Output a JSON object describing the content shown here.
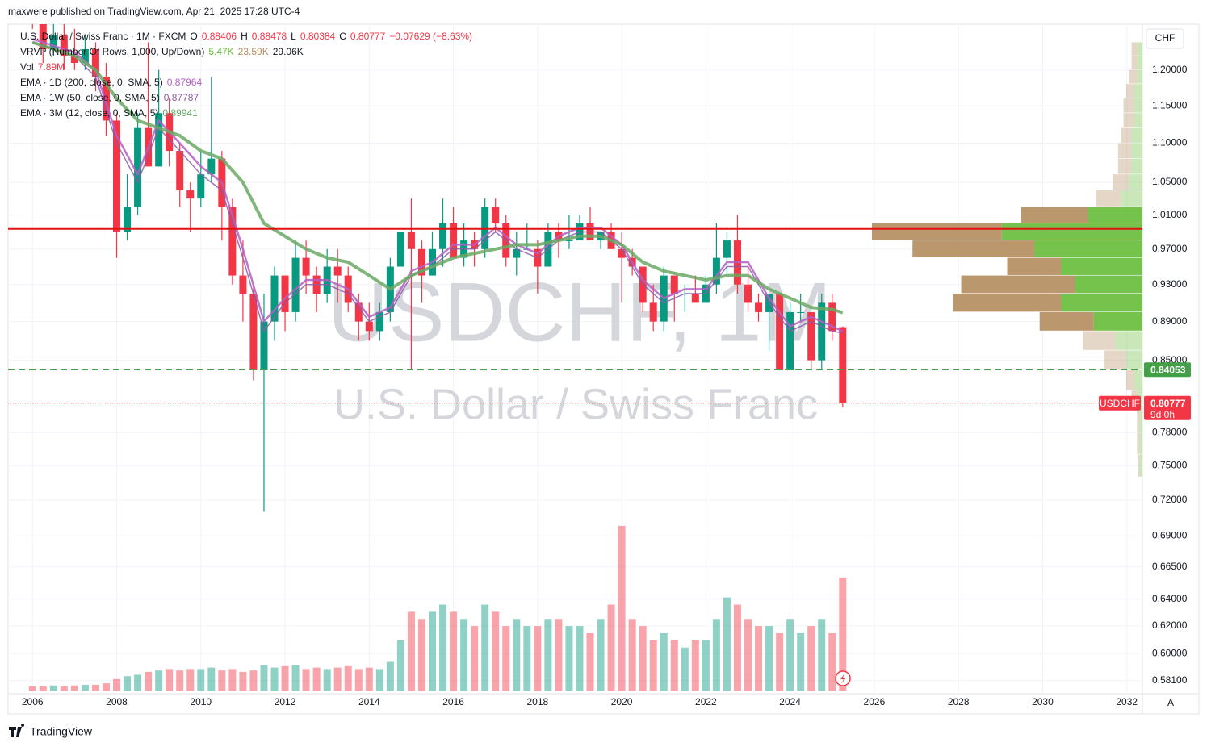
{
  "header": "maxwere published on TradingView.com, Apr 21, 2025 17:28 UTC-4",
  "footer": "TradingView",
  "chart_data": {
    "type": "candlestick",
    "title": "U.S. Dollar / Swiss Franc · 1M · FXCM",
    "watermark_symbol": "USDCHF, 1M",
    "watermark_name": "U.S. Dollar / Swiss Franc",
    "currency": "CHF",
    "auto_button": "A",
    "ohlc_labels": [
      "O",
      "H",
      "L",
      "C"
    ],
    "change": "−0.07629 (−8.63%)",
    "up_color": "#089981",
    "down_color": "#f23645",
    "x": [
      2006,
      2006.25,
      2006.5,
      2006.75,
      2007,
      2007.25,
      2007.5,
      2007.75,
      2008,
      2008.25,
      2008.5,
      2008.75,
      2009,
      2009.25,
      2009.5,
      2009.75,
      2010,
      2010.25,
      2010.5,
      2010.75,
      2011,
      2011.25,
      2011.5,
      2011.75,
      2012,
      2012.25,
      2012.5,
      2012.75,
      2013,
      2013.25,
      2013.5,
      2013.75,
      2014,
      2014.25,
      2014.5,
      2014.75,
      2015,
      2015.25,
      2015.5,
      2015.75,
      2016,
      2016.25,
      2016.5,
      2016.75,
      2017,
      2017.25,
      2017.5,
      2017.75,
      2018,
      2018.25,
      2018.5,
      2018.75,
      2019,
      2019.25,
      2019.5,
      2019.75,
      2020,
      2020.25,
      2020.5,
      2020.75,
      2021,
      2021.25,
      2021.5,
      2021.75,
      2022,
      2022.25,
      2022.5,
      2022.75,
      2023,
      2023.25,
      2023.5,
      2023.75,
      2024,
      2024.25,
      2024.5,
      2024.75,
      2025,
      2025.25
    ],
    "open": [
      1.31,
      1.27,
      1.23,
      1.25,
      1.22,
      1.21,
      1.23,
      1.19,
      1.13,
      0.99,
      1.02,
      1.12,
      1.07,
      1.14,
      1.09,
      1.04,
      1.03,
      1.06,
      1.08,
      1.02,
      0.94,
      0.92,
      0.84,
      0.89,
      0.94,
      0.9,
      0.96,
      0.94,
      0.92,
      0.95,
      0.94,
      0.91,
      0.89,
      0.88,
      0.9,
      0.95,
      0.99,
      0.97,
      0.94,
      0.97,
      1.0,
      0.96,
      0.98,
      0.97,
      1.02,
      1.0,
      0.96,
      0.97,
      0.97,
      0.95,
      0.99,
      0.98,
      0.98,
      1.0,
      0.98,
      0.99,
      0.97,
      0.96,
      0.95,
      0.91,
      0.89,
      0.94,
      0.92,
      0.92,
      0.91,
      0.93,
      0.96,
      0.98,
      0.93,
      0.91,
      0.9,
      0.92,
      0.84,
      0.9,
      0.9,
      0.85,
      0.91,
      0.88406
    ],
    "high": [
      1.32,
      1.29,
      1.27,
      1.28,
      1.26,
      1.25,
      1.24,
      1.21,
      1.14,
      1.06,
      1.14,
      1.24,
      1.2,
      1.16,
      1.1,
      1.05,
      1.09,
      1.19,
      1.09,
      1.03,
      0.98,
      0.93,
      0.92,
      0.95,
      0.94,
      0.98,
      0.98,
      0.95,
      0.97,
      0.97,
      0.95,
      0.92,
      0.91,
      0.91,
      0.96,
      0.99,
      1.03,
      0.98,
      0.99,
      1.03,
      1.02,
      1.0,
      0.99,
      1.03,
      1.03,
      1.01,
      0.99,
      1.0,
      0.98,
      1.0,
      1.0,
      1.01,
      1.01,
      1.02,
      0.99,
      1.0,
      0.99,
      0.97,
      0.95,
      0.93,
      0.95,
      0.94,
      0.93,
      0.94,
      0.94,
      1.0,
      0.99,
      1.01,
      0.95,
      0.92,
      0.92,
      0.92,
      0.91,
      0.92,
      0.9,
      0.92,
      0.92,
      0.88478
    ],
    "low": [
      1.26,
      1.21,
      1.22,
      1.2,
      1.2,
      1.2,
      1.17,
      1.11,
      0.96,
      0.98,
      1.01,
      1.07,
      1.07,
      1.07,
      1.02,
      0.99,
      1.02,
      1.05,
      0.98,
      0.93,
      0.89,
      0.83,
      0.71,
      0.87,
      0.88,
      0.89,
      0.92,
      0.9,
      0.91,
      0.91,
      0.9,
      0.87,
      0.87,
      0.87,
      0.89,
      0.95,
      0.84,
      0.91,
      0.94,
      0.95,
      0.96,
      0.95,
      0.95,
      0.96,
      0.99,
      0.95,
      0.94,
      0.97,
      0.92,
      0.95,
      0.96,
      0.97,
      0.98,
      0.98,
      0.97,
      0.97,
      0.91,
      0.94,
      0.9,
      0.88,
      0.88,
      0.89,
      0.9,
      0.91,
      0.91,
      0.92,
      0.94,
      0.92,
      0.9,
      0.89,
      0.86,
      0.84,
      0.84,
      0.89,
      0.84,
      0.84,
      0.87,
      0.80384
    ],
    "close": [
      1.27,
      1.23,
      1.25,
      1.22,
      1.21,
      1.23,
      1.19,
      1.13,
      0.99,
      1.02,
      1.12,
      1.07,
      1.14,
      1.09,
      1.04,
      1.03,
      1.06,
      1.08,
      1.02,
      0.94,
      0.92,
      0.84,
      0.89,
      0.94,
      0.9,
      0.96,
      0.94,
      0.92,
      0.95,
      0.94,
      0.91,
      0.89,
      0.88,
      0.9,
      0.95,
      0.99,
      0.97,
      0.94,
      0.97,
      1.0,
      0.96,
      0.98,
      0.97,
      1.02,
      1.0,
      0.96,
      0.97,
      0.97,
      0.95,
      0.99,
      0.98,
      0.98,
      1.0,
      0.98,
      0.99,
      0.97,
      0.96,
      0.95,
      0.91,
      0.89,
      0.94,
      0.92,
      0.92,
      0.91,
      0.93,
      0.96,
      0.98,
      0.93,
      0.91,
      0.9,
      0.92,
      0.84,
      0.9,
      0.9,
      0.85,
      0.91,
      0.88,
      0.80777
    ],
    "xlim": [
      2005.42,
      2032.37
    ],
    "xticks": [
      2006,
      2008,
      2010,
      2012,
      2014,
      2016,
      2018,
      2020,
      2022,
      2024,
      2026,
      2028,
      2030,
      2032
    ],
    "ylim": [
      0.572,
      1.267
    ],
    "log_scale": true,
    "grid": true,
    "yticks": [
      {
        "value": 1.2,
        "label": "1.20000"
      },
      {
        "value": 1.15,
        "label": "1.15000"
      },
      {
        "value": 1.1,
        "label": "1.10000"
      },
      {
        "value": 1.05,
        "label": "1.05000"
      },
      {
        "value": 1.01,
        "label": "1.01000"
      },
      {
        "value": 0.97,
        "label": "0.97000"
      },
      {
        "value": 0.93,
        "label": "0.93000"
      },
      {
        "value": 0.89,
        "label": "0.89000"
      },
      {
        "value": 0.85,
        "label": "0.85000"
      },
      {
        "value": 0.78,
        "label": "0.78000"
      },
      {
        "value": 0.75,
        "label": "0.75000"
      },
      {
        "value": 0.72,
        "label": "0.72000"
      },
      {
        "value": 0.69,
        "label": "0.69000"
      },
      {
        "value": 0.665,
        "label": "0.66500"
      },
      {
        "value": 0.64,
        "label": "0.64000"
      },
      {
        "value": 0.62,
        "label": "0.62000"
      },
      {
        "value": 0.6,
        "label": "0.60000"
      },
      {
        "value": 0.581,
        "label": "0.58100"
      }
    ],
    "volume": {
      "name": "Vol",
      "value_label": "7.89M",
      "values": [
        0.3,
        0.3,
        0.35,
        0.3,
        0.35,
        0.4,
        0.4,
        0.5,
        0.8,
        1.0,
        1.1,
        1.3,
        1.4,
        1.5,
        1.4,
        1.5,
        1.5,
        1.6,
        1.4,
        1.5,
        1.3,
        1.4,
        1.8,
        1.6,
        1.7,
        1.8,
        1.5,
        1.6,
        1.5,
        1.6,
        1.7,
        1.5,
        1.6,
        1.5,
        2.0,
        3.5,
        5.5,
        5.0,
        5.5,
        6.0,
        5.5,
        5.0,
        4.5,
        6.0,
        5.5,
        4.5,
        5.0,
        4.5,
        4.5,
        5.0,
        5.0,
        4.5,
        4.5,
        4.0,
        5.0,
        6.0,
        11.5,
        5.0,
        4.5,
        3.5,
        4.0,
        3.5,
        3.0,
        3.5,
        3.5,
        5.0,
        6.5,
        6.0,
        5.0,
        4.5,
        4.5,
        4.0,
        5.0,
        4.0,
        4.5,
        5.0,
        4.0,
        7.89
      ],
      "ylim": [
        0,
        16
      ]
    },
    "vrvp": {
      "name": "VRVP (Number Of Rows, 1,000, Up/Down)",
      "labels": [
        "5.47K",
        "23.59K",
        "29.06K"
      ],
      "prices": [
        1.23,
        1.21,
        1.19,
        1.17,
        1.15,
        1.13,
        1.11,
        1.09,
        1.07,
        1.05,
        1.03,
        1.01,
        0.99,
        0.97,
        0.95,
        0.93,
        0.91,
        0.89,
        0.87,
        0.85,
        0.83,
        0.81,
        0.79,
        0.77,
        0.75
      ],
      "up": [
        2,
        2,
        2,
        3,
        3,
        3,
        4,
        4,
        4,
        5,
        8,
        20,
        52,
        40,
        30,
        25,
        30,
        18,
        10,
        6,
        3,
        2,
        1,
        1,
        1
      ],
      "down": [
        2,
        2,
        3,
        3,
        4,
        4,
        4,
        5,
        5,
        6,
        9,
        25,
        48,
        45,
        20,
        42,
        40,
        20,
        12,
        8,
        3,
        2,
        1,
        1,
        0.5
      ],
      "xlim": [
        0,
        100
      ],
      "up_color": "#66bb3a",
      "down_color": "#b48c5e"
    },
    "series": [
      {
        "name": "EMA · 1D (200, close, 0, SMA, 5)",
        "value": 0.87964,
        "color": "#b45fc6",
        "width": 2.5,
        "x": [
          2006,
          2006.5,
          2007,
          2007.5,
          2008,
          2008.5,
          2009,
          2009.5,
          2010,
          2010.5,
          2011,
          2011.5,
          2012,
          2012.5,
          2013,
          2013.5,
          2014,
          2014.5,
          2015,
          2015.5,
          2016,
          2016.5,
          2017,
          2017.5,
          2018,
          2018.5,
          2019,
          2019.5,
          2020,
          2020.5,
          2021,
          2021.5,
          2022,
          2022.5,
          2023,
          2023.5,
          2024,
          2024.5,
          2025,
          2025.25
        ],
        "values": [
          1.245,
          1.235,
          1.225,
          1.2,
          1.11,
          1.06,
          1.13,
          1.1,
          1.07,
          1.05,
          0.97,
          0.89,
          0.915,
          0.935,
          0.935,
          0.925,
          0.895,
          0.905,
          0.945,
          0.955,
          0.975,
          0.975,
          0.995,
          0.975,
          0.965,
          0.985,
          0.995,
          0.995,
          0.975,
          0.935,
          0.915,
          0.925,
          0.925,
          0.955,
          0.955,
          0.915,
          0.885,
          0.895,
          0.885,
          0.87964
        ]
      },
      {
        "name": "EMA · 1W (50, close, 0, SMA, 5)",
        "value": 0.87787,
        "color": "#8e5aa8",
        "width": 1.5,
        "x": [
          2006,
          2006.5,
          2007,
          2007.5,
          2008,
          2008.5,
          2009,
          2009.5,
          2010,
          2010.5,
          2011,
          2011.5,
          2012,
          2012.5,
          2013,
          2013.5,
          2014,
          2014.5,
          2015,
          2015.5,
          2016,
          2016.5,
          2017,
          2017.5,
          2018,
          2018.5,
          2019,
          2019.5,
          2020,
          2020.5,
          2021,
          2021.5,
          2022,
          2022.5,
          2023,
          2023.5,
          2024,
          2024.5,
          2025,
          2025.25
        ],
        "values": [
          1.24,
          1.23,
          1.22,
          1.19,
          1.1,
          1.05,
          1.12,
          1.09,
          1.06,
          1.04,
          0.96,
          0.88,
          0.91,
          0.93,
          0.93,
          0.92,
          0.89,
          0.9,
          0.94,
          0.95,
          0.97,
          0.97,
          0.99,
          0.97,
          0.96,
          0.98,
          0.99,
          0.99,
          0.97,
          0.93,
          0.91,
          0.92,
          0.92,
          0.95,
          0.95,
          0.91,
          0.88,
          0.89,
          0.88,
          0.87787
        ]
      },
      {
        "name": "EMA · 3M (12, close, 0, SMA, 5)",
        "value": 0.89941,
        "color": "#6aa864",
        "width": 4,
        "x": [
          2006,
          2006.5,
          2007,
          2007.5,
          2008,
          2008.5,
          2009,
          2009.5,
          2010,
          2010.5,
          2011,
          2011.5,
          2012,
          2012.5,
          2013,
          2013.5,
          2014,
          2014.5,
          2015,
          2015.5,
          2016,
          2016.5,
          2017,
          2017.5,
          2018,
          2018.5,
          2019,
          2019.5,
          2020,
          2020.5,
          2021,
          2021.5,
          2022,
          2022.5,
          2023,
          2023.5,
          2024,
          2024.5,
          2025,
          2025.25
        ],
        "values": [
          1.24,
          1.23,
          1.22,
          1.2,
          1.16,
          1.13,
          1.12,
          1.11,
          1.09,
          1.08,
          1.05,
          1.0,
          0.985,
          0.97,
          0.96,
          0.955,
          0.94,
          0.925,
          0.94,
          0.95,
          0.96,
          0.965,
          0.97,
          0.975,
          0.975,
          0.98,
          0.985,
          0.985,
          0.975,
          0.955,
          0.945,
          0.94,
          0.935,
          0.94,
          0.94,
          0.925,
          0.915,
          0.905,
          0.903,
          0.89941
        ]
      }
    ],
    "levels": [
      {
        "value": 0.9935,
        "color": "#e31212",
        "style": "solid",
        "show_label": false
      },
      {
        "value": 0.84053,
        "color": "#43a047",
        "style": "dashed",
        "show_label": true
      }
    ],
    "last_label": "USDCHF",
    "countdown": "9d 0h"
  }
}
